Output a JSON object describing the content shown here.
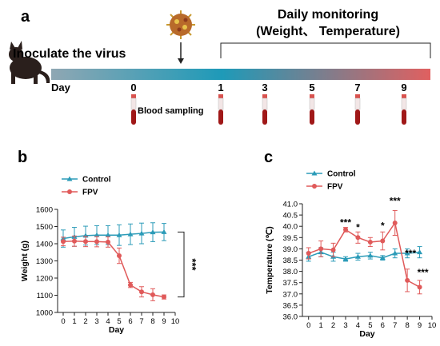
{
  "panel_a": {
    "letter": "a",
    "inoculate_label": "Inoculate the virus",
    "monitor_title_1": "Daily monitoring",
    "monitor_title_2": "(Weight、 Temperature)",
    "day_label": "Day",
    "days": [
      "0",
      "1",
      "3",
      "5",
      "7",
      "9"
    ],
    "blood_label": "Blood sampling",
    "colors": {
      "timeline_start": "#8fa7b3",
      "timeline_mid": "#1e9ab8",
      "timeline_end": "#e06060",
      "tube_blood": "#a01818"
    },
    "icons": [
      "cat-icon",
      "virus-icon",
      "arrow-down-icon",
      "blood-tube-icon"
    ]
  },
  "chart_data": [
    {
      "id": "b",
      "type": "line",
      "title": "",
      "xlabel": "Day",
      "ylabel": "Weight (g)",
      "xlim": [
        -0.5,
        10
      ],
      "ylim": [
        1000,
        1600
      ],
      "x_ticks": [
        "0",
        "1",
        "2",
        "3",
        "4",
        "5",
        "6",
        "7",
        "8",
        "9",
        "10"
      ],
      "y_ticks": [
        "1000",
        "1100",
        "1200",
        "1300",
        "1400",
        "1500",
        "1600"
      ],
      "legend": {
        "placement": "top-left",
        "entries": [
          "Control",
          "FPV"
        ]
      },
      "series": [
        {
          "name": "Control",
          "color": "#2b9bb8",
          "marker": "triangle",
          "x": [
            0,
            1,
            2,
            3,
            4,
            5,
            6,
            7,
            8,
            9
          ],
          "y": [
            1430,
            1440,
            1447,
            1450,
            1450,
            1450,
            1455,
            1460,
            1467,
            1468
          ],
          "err": [
            50,
            55,
            55,
            55,
            55,
            60,
            60,
            60,
            55,
            50
          ]
        },
        {
          "name": "FPV",
          "color": "#e05a5a",
          "marker": "circle",
          "x": [
            0,
            1,
            2,
            3,
            4,
            5,
            6,
            7,
            8,
            9
          ],
          "y": [
            1413,
            1415,
            1413,
            1412,
            1410,
            1330,
            1160,
            1120,
            1103,
            1090
          ],
          "err": [
            25,
            30,
            30,
            30,
            30,
            45,
            15,
            30,
            35,
            12
          ]
        }
      ],
      "significance": "***"
    },
    {
      "id": "c",
      "type": "line",
      "title": "",
      "xlabel": "Day",
      "ylabel": "Temperature (℃)",
      "xlim": [
        -0.5,
        10
      ],
      "ylim": [
        36.0,
        41.0
      ],
      "x_ticks": [
        "0",
        "1",
        "2",
        "3",
        "4",
        "5",
        "6",
        "7",
        "8",
        "9",
        "10"
      ],
      "y_ticks": [
        "36.0",
        "36.5",
        "37.0",
        "37.5",
        "38.0",
        "38.5",
        "39.0",
        "39.5",
        "40.0",
        "40.5",
        "41.0"
      ],
      "legend": {
        "placement": "top-left",
        "entries": [
          "Control",
          "FPV"
        ]
      },
      "series": [
        {
          "name": "Control",
          "color": "#2b9bb8",
          "marker": "triangle",
          "x": [
            0,
            1,
            2,
            3,
            4,
            5,
            6,
            7,
            8,
            9
          ],
          "y": [
            38.65,
            38.85,
            38.65,
            38.55,
            38.65,
            38.7,
            38.6,
            38.8,
            38.8,
            38.85
          ],
          "err": [
            0.2,
            0.2,
            0.2,
            0.1,
            0.15,
            0.15,
            0.1,
            0.2,
            0.2,
            0.25
          ]
        },
        {
          "name": "FPV",
          "color": "#e05a5a",
          "marker": "circle",
          "x": [
            0,
            1,
            2,
            3,
            4,
            5,
            6,
            7,
            8,
            9
          ],
          "y": [
            38.8,
            39.0,
            38.95,
            39.85,
            39.5,
            39.3,
            39.35,
            40.15,
            37.6,
            37.3
          ],
          "err": [
            0.25,
            0.35,
            0.3,
            0.1,
            0.25,
            0.2,
            0.4,
            0.55,
            0.5,
            0.3
          ]
        }
      ],
      "stars": [
        "***",
        "*",
        "",
        "*",
        "***",
        "***",
        "***"
      ]
    }
  ],
  "panel_b": {
    "letter": "b"
  },
  "panel_c": {
    "letter": "c"
  }
}
